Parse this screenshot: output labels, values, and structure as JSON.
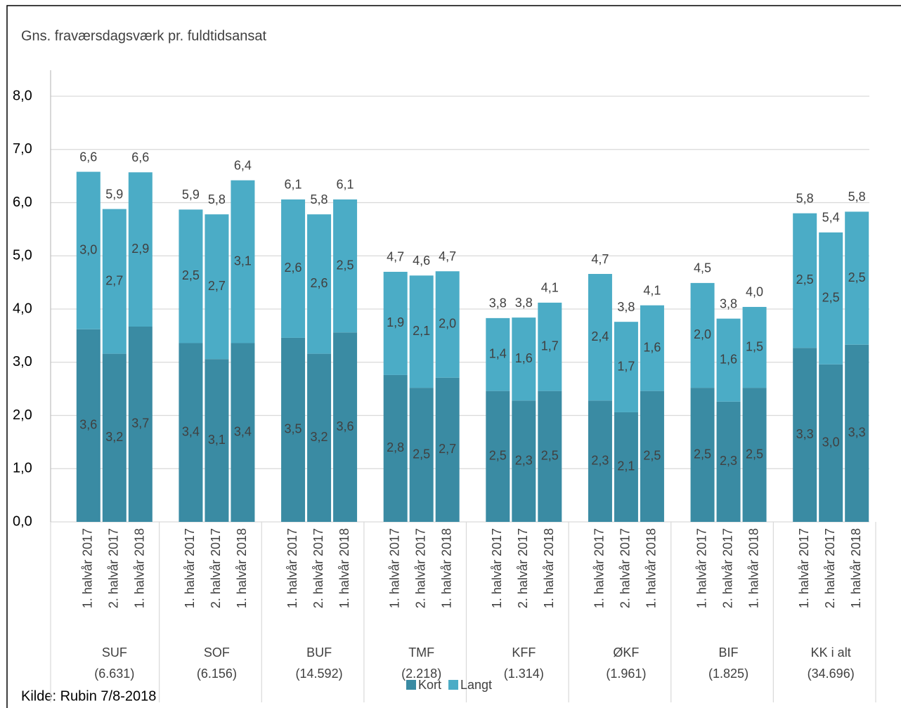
{
  "chart_data": {
    "type": "stacked_bar",
    "title": "Gns. fraværsdagsværk pr. fuldtidsansat",
    "source": "Kilde: Rubin 7/8-2018",
    "groups": [
      {
        "name": "SUF",
        "note": "(6.631)"
      },
      {
        "name": "SOF",
        "note": "(6.156)"
      },
      {
        "name": "BUF",
        "note": "(14.592)"
      },
      {
        "name": "TMF",
        "note": "(2.218)"
      },
      {
        "name": "KFF",
        "note": "(1.314)"
      },
      {
        "name": "ØKF",
        "note": "(1.961)"
      },
      {
        "name": "BIF",
        "note": "(1.825)"
      },
      {
        "name": "KK i alt",
        "note": "(34.696)"
      }
    ],
    "categories": [
      "1. halvår 2017",
      "2. halvår 2017",
      "1. halvår 2018",
      "1. halvår 2017",
      "2. halvår 2017",
      "1. halvår 2018",
      "1. halvår 2017",
      "2. halvår 2017",
      "1. halvår 2018",
      "1. halvår 2017",
      "2. halvår 2017",
      "1. halvår 2018",
      "1. halvår 2017",
      "2. halvår 2017",
      "1. halvår 2018",
      "1. halvår 2017",
      "2. halvår 2017",
      "1. halvår 2018",
      "1. halvår 2017",
      "2. halvår 2017",
      "1. halvår 2018",
      "1. halvår 2017",
      "2. halvår 2017",
      "1. halvår 2018"
    ],
    "series": [
      {
        "name": "Kort",
        "color": "#3a8ba3",
        "values": [
          3.62,
          3.16,
          3.67,
          3.36,
          3.06,
          3.36,
          3.46,
          3.16,
          3.56,
          2.76,
          2.52,
          2.71,
          2.46,
          2.28,
          2.46,
          2.28,
          2.06,
          2.46,
          2.52,
          2.26,
          2.52,
          3.27,
          2.96,
          3.33
        ],
        "value_labels": [
          "3,6",
          "3,2",
          "3,7",
          "3,4",
          "3,1",
          "3,4",
          "3,5",
          "3,2",
          "3,6",
          "2,8",
          "2,5",
          "2,7",
          "2,5",
          "2,3",
          "2,5",
          "2,3",
          "2,1",
          "2,5",
          "2,5",
          "2,3",
          "2,5",
          "3,3",
          "3,0",
          "3,3"
        ]
      },
      {
        "name": "Langt",
        "color": "#4bacc6",
        "values": [
          2.96,
          2.72,
          2.9,
          2.51,
          2.72,
          3.06,
          2.6,
          2.62,
          2.5,
          1.94,
          2.11,
          2.0,
          1.37,
          1.56,
          1.66,
          2.38,
          1.7,
          1.61,
          1.97,
          1.56,
          1.52,
          2.53,
          2.48,
          2.5
        ],
        "value_labels": [
          "3,0",
          "2,7",
          "2,9",
          "2,5",
          "2,7",
          "3,1",
          "2,6",
          "2,6",
          "2,5",
          "1,9",
          "2,1",
          "2,0",
          "1,4",
          "1,6",
          "1,7",
          "2,4",
          "1,7",
          "1,6",
          "2,0",
          "1,6",
          "1,5",
          "2,5",
          "2,5",
          "2,5"
        ]
      }
    ],
    "totals": [
      6.58,
      5.88,
      6.57,
      5.87,
      5.78,
      6.42,
      6.06,
      5.78,
      6.06,
      4.7,
      4.63,
      4.71,
      3.83,
      3.84,
      4.12,
      4.66,
      3.76,
      4.07,
      4.49,
      3.82,
      4.04,
      5.8,
      5.44,
      5.83
    ],
    "total_labels": [
      "6,6",
      "5,9",
      "6,6",
      "5,9",
      "5,8",
      "6,4",
      "6,1",
      "5,8",
      "6,1",
      "4,7",
      "4,6",
      "4,7",
      "3,8",
      "3,8",
      "4,1",
      "4,7",
      "3,8",
      "4,1",
      "4,5",
      "3,8",
      "4,0",
      "5,8",
      "5,4",
      "5,8"
    ],
    "ylim": [
      0,
      8
    ],
    "yticks": [
      {
        "value": 0,
        "label": "0,0"
      },
      {
        "value": 1,
        "label": "1,0"
      },
      {
        "value": 2,
        "label": "2,0"
      },
      {
        "value": 3,
        "label": "3,0"
      },
      {
        "value": 4,
        "label": "4,0"
      },
      {
        "value": 5,
        "label": "5,0"
      },
      {
        "value": 6,
        "label": "6,0"
      },
      {
        "value": 7,
        "label": "7,0"
      },
      {
        "value": 8,
        "label": "8,0"
      }
    ],
    "grid": true,
    "legend": "bottom"
  }
}
